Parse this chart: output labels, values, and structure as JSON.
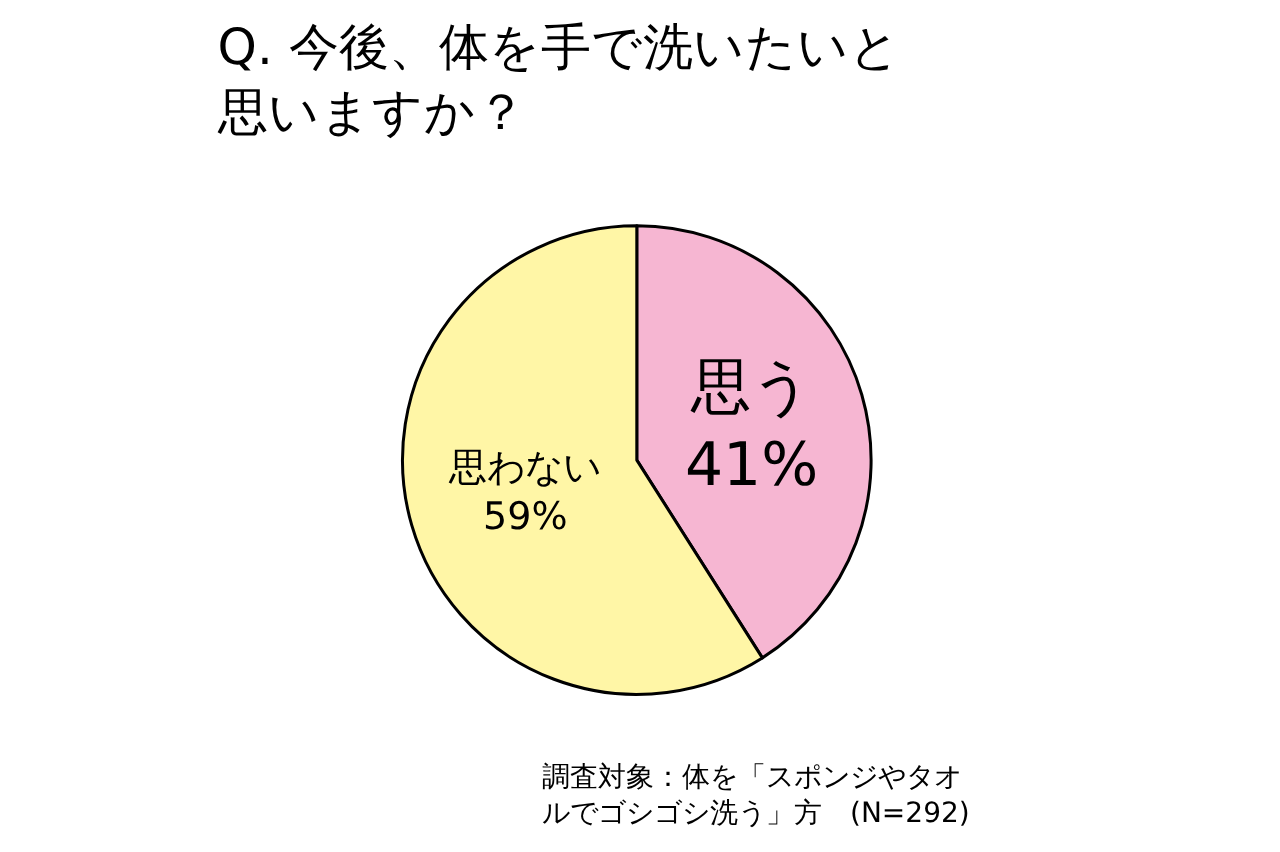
{
  "chart_data": {
    "type": "pie",
    "title": "Q. 今後、体を手で洗いたいと思いますか？",
    "categories": [
      "思う",
      "思わない"
    ],
    "values": [
      41,
      59
    ],
    "value_labels": [
      "41%",
      "59%"
    ],
    "colors": [
      "#f6b6d2",
      "#fff6a6"
    ],
    "legend": false,
    "annotations": [
      "調査対象：体を「スポンジやタオルでゴシゴシ洗う」方　(N=292)"
    ]
  }
}
